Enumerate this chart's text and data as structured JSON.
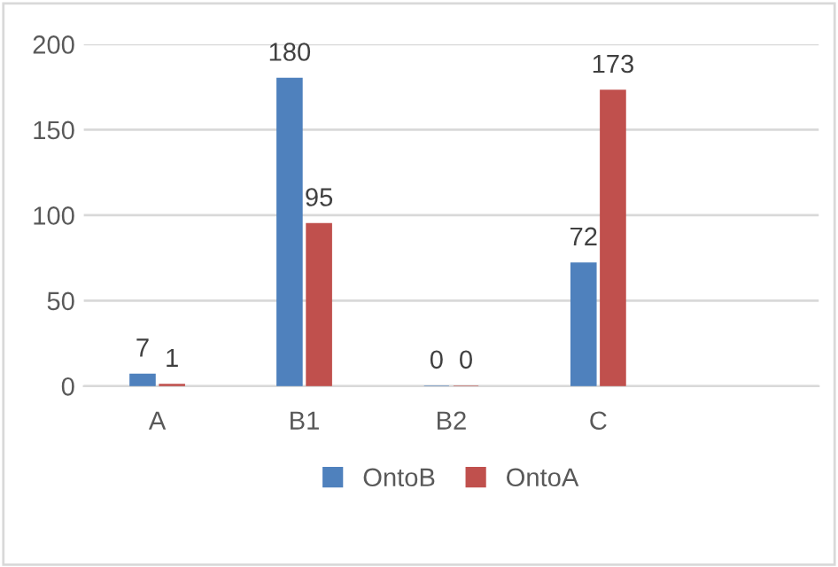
{
  "chart_data": {
    "type": "bar",
    "categories": [
      "A",
      "B1",
      "B2",
      "C",
      null
    ],
    "series": [
      {
        "name": "OntoB",
        "color": "#4f81bd",
        "values": [
          7,
          180,
          0,
          72,
          null
        ]
      },
      {
        "name": "OntoA",
        "color": "#c0504d",
        "values": [
          1,
          95,
          0,
          173,
          null
        ]
      }
    ],
    "ylim": [
      0,
      200
    ],
    "yticks": [
      0,
      50,
      100,
      150,
      200
    ],
    "grid": "y",
    "legend": "bottom",
    "data_labels": true
  }
}
